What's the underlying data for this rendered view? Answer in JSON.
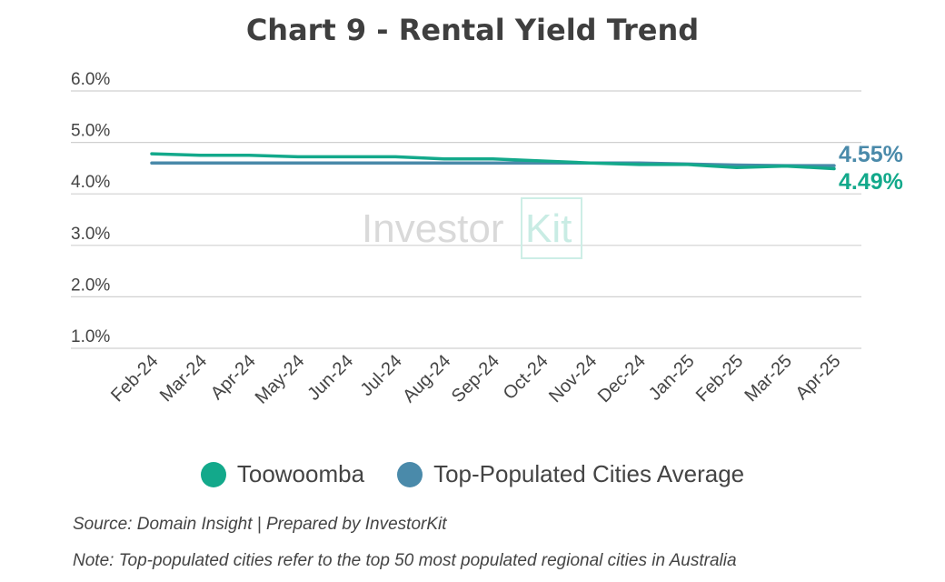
{
  "chart_data": {
    "type": "line",
    "title": "Chart 9 - Rental Yield Trend",
    "categories": [
      "Feb-24",
      "Mar-24",
      "Apr-24",
      "May-24",
      "Jun-24",
      "Jul-24",
      "Aug-24",
      "Sep-24",
      "Oct-24",
      "Nov-24",
      "Dec-24",
      "Jan-25",
      "Feb-25",
      "Mar-25",
      "Apr-25"
    ],
    "series": [
      {
        "name": "Toowoomba",
        "color": "#13a98b",
        "values": [
          4.78,
          4.75,
          4.75,
          4.72,
          4.72,
          4.72,
          4.68,
          4.68,
          4.64,
          4.6,
          4.57,
          4.57,
          4.51,
          4.54,
          4.49
        ]
      },
      {
        "name": "Top-Populated Cities Average",
        "color": "#4a8aaa",
        "values": [
          4.6,
          4.6,
          4.6,
          4.6,
          4.6,
          4.6,
          4.6,
          4.6,
          4.6,
          4.6,
          4.6,
          4.58,
          4.56,
          4.55,
          4.55
        ]
      }
    ],
    "end_labels": [
      {
        "text": "4.55%",
        "color": "#4a8aaa",
        "value": 4.55
      },
      {
        "text": "4.49%",
        "color": "#13a98b",
        "value": 4.49
      }
    ],
    "yticks": [
      "1.0%",
      "2.0%",
      "3.0%",
      "4.0%",
      "5.0%",
      "6.0%"
    ],
    "ylim": [
      1.0,
      6.0
    ],
    "grid": true,
    "legend_position": "bottom"
  },
  "watermark": {
    "part1": "Investor",
    "part2": "Kit"
  },
  "footer": {
    "source": "Source: Domain Insight | Prepared by InvestorKit",
    "note": "Note: Top-populated cities refer to the top 50 most populated regional cities in Australia"
  }
}
